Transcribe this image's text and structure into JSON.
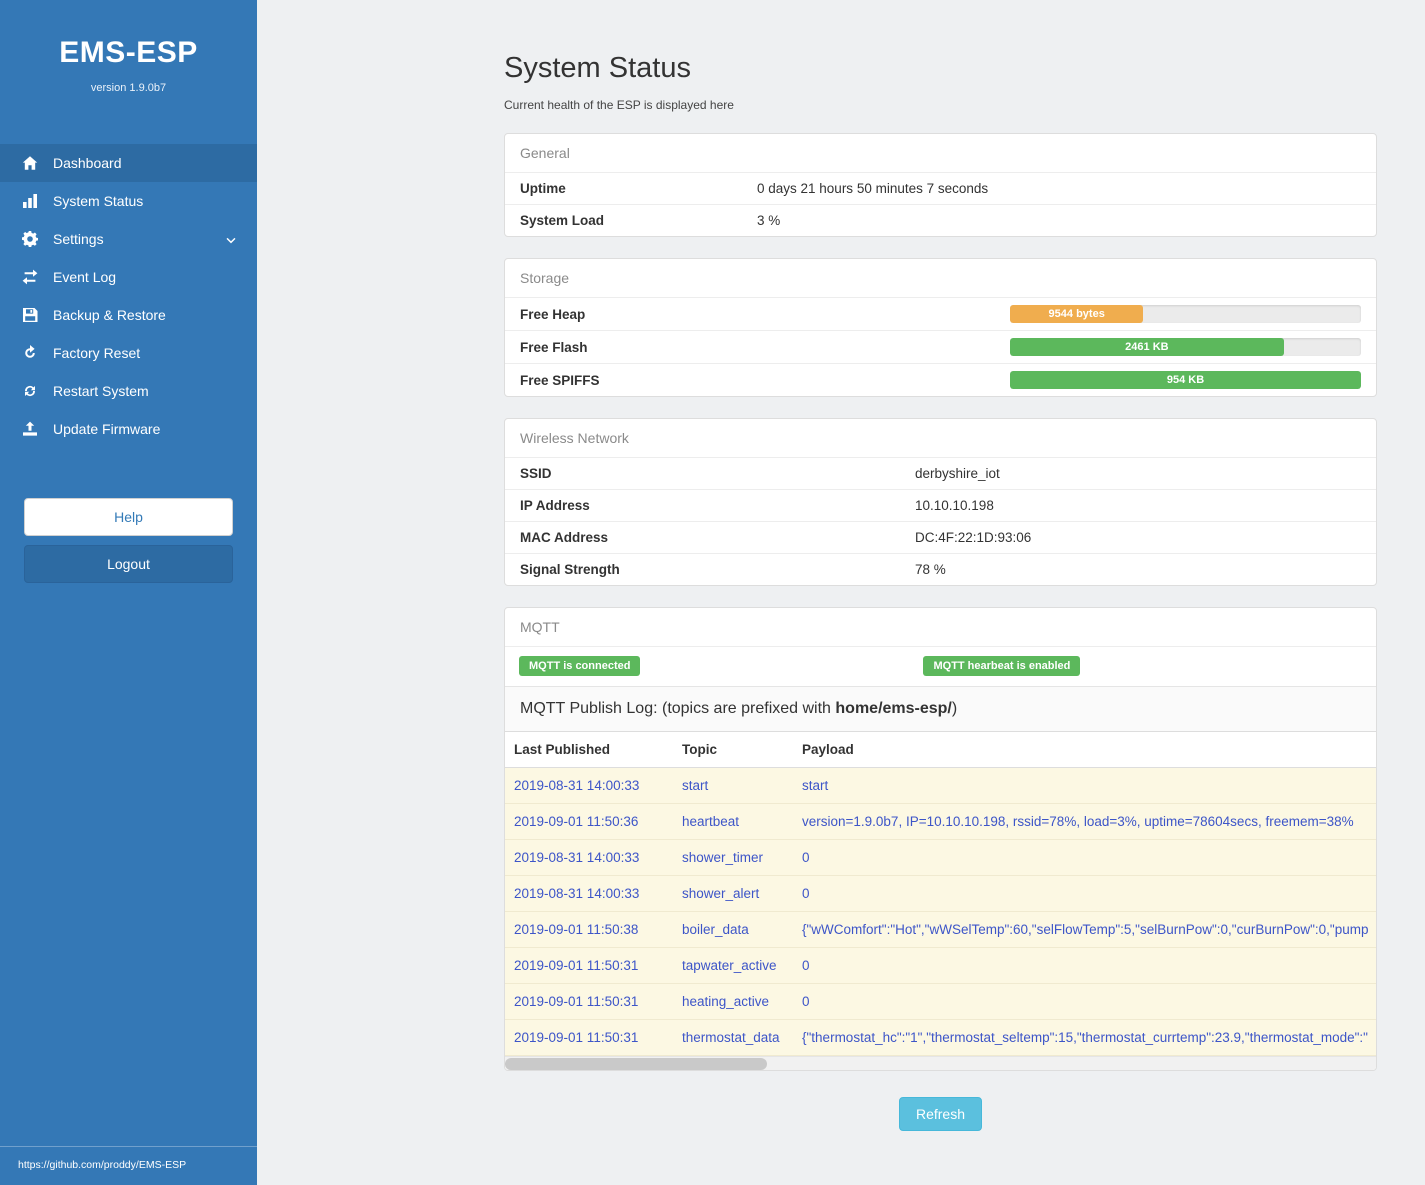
{
  "colors": {
    "sidebar": "#3478b6",
    "sidebar_active": "#2d6ba3",
    "success_green": "#5cb85c",
    "warning_orange": "#f0ad4e",
    "info_blue": "#5bc0de",
    "log_link_blue": "#3d55c8",
    "log_row_bg": "#fcf8e3"
  },
  "sidebar": {
    "title": "EMS-ESP",
    "version": "version 1.9.0b7",
    "items": [
      {
        "label": "Dashboard",
        "icon": "home",
        "active": true
      },
      {
        "label": "System Status",
        "icon": "bar-chart",
        "active": false
      },
      {
        "label": "Settings",
        "icon": "gear",
        "chevron": true,
        "active": false
      },
      {
        "label": "Event Log",
        "icon": "exchange-arrows",
        "active": false
      },
      {
        "label": "Backup & Restore",
        "icon": "save-floppy",
        "active": false
      },
      {
        "label": "Factory Reset",
        "icon": "reset-arrow",
        "active": false
      },
      {
        "label": "Restart System",
        "icon": "restart-arrows",
        "active": false
      },
      {
        "label": "Update Firmware",
        "icon": "upload",
        "active": false
      }
    ],
    "help_label": "Help",
    "logout_label": "Logout",
    "footer_link": "https://github.com/proddy/EMS-ESP"
  },
  "page": {
    "title": "System Status",
    "subtitle": "Current health of the ESP is displayed here"
  },
  "general": {
    "header": "General",
    "rows": [
      {
        "label": "Uptime",
        "value": "0 days 21 hours 50 minutes 7 seconds"
      },
      {
        "label": "System Load",
        "value": "3 %"
      }
    ]
  },
  "storage": {
    "header": "Storage",
    "rows": [
      {
        "label": "Free Heap",
        "bar_label": "9544 bytes",
        "percent": 38,
        "color": "#f0ad4e"
      },
      {
        "label": "Free Flash",
        "bar_label": "2461 KB",
        "percent": 78,
        "color": "#5cb85c"
      },
      {
        "label": "Free SPIFFS",
        "bar_label": "954 KB",
        "percent": 100,
        "color": "#5cb85c"
      }
    ]
  },
  "wireless": {
    "header": "Wireless Network",
    "rows": [
      {
        "label": "SSID",
        "value": "derbyshire_iot"
      },
      {
        "label": "IP Address",
        "value": "10.10.10.198"
      },
      {
        "label": "MAC Address",
        "value": "DC:4F:22:1D:93:06"
      },
      {
        "label": "Signal Strength",
        "value": "78 %"
      }
    ]
  },
  "mqtt": {
    "header": "MQTT",
    "badges": [
      "MQTT is connected",
      "MQTT hearbeat is enabled"
    ],
    "log_title_prefix": "MQTT Publish Log: (topics are prefixed with ",
    "log_title_bold": "home/ems-esp/",
    "log_title_suffix": ")",
    "columns": [
      "Last Published",
      "Topic",
      "Payload"
    ],
    "rows": [
      {
        "time": "2019-08-31 14:00:33",
        "topic": "start",
        "payload": "start"
      },
      {
        "time": "2019-09-01 11:50:36",
        "topic": "heartbeat",
        "payload": "version=1.9.0b7, IP=10.10.10.198, rssid=78%, load=3%, uptime=78604secs, freemem=38%"
      },
      {
        "time": "2019-08-31 14:00:33",
        "topic": "shower_timer",
        "payload": "0"
      },
      {
        "time": "2019-08-31 14:00:33",
        "topic": "shower_alert",
        "payload": "0"
      },
      {
        "time": "2019-09-01 11:50:38",
        "topic": "boiler_data",
        "payload": "{\"wWComfort\":\"Hot\",\"wWSelTemp\":60,\"selFlowTemp\":5,\"selBurnPow\":0,\"curBurnPow\":0,\"pump"
      },
      {
        "time": "2019-09-01 11:50:31",
        "topic": "tapwater_active",
        "payload": "0"
      },
      {
        "time": "2019-09-01 11:50:31",
        "topic": "heating_active",
        "payload": "0"
      },
      {
        "time": "2019-09-01 11:50:31",
        "topic": "thermostat_data",
        "payload": "{\"thermostat_hc\":\"1\",\"thermostat_seltemp\":15,\"thermostat_currtemp\":23.9,\"thermostat_mode\":\""
      }
    ]
  },
  "refresh_label": "Refresh"
}
